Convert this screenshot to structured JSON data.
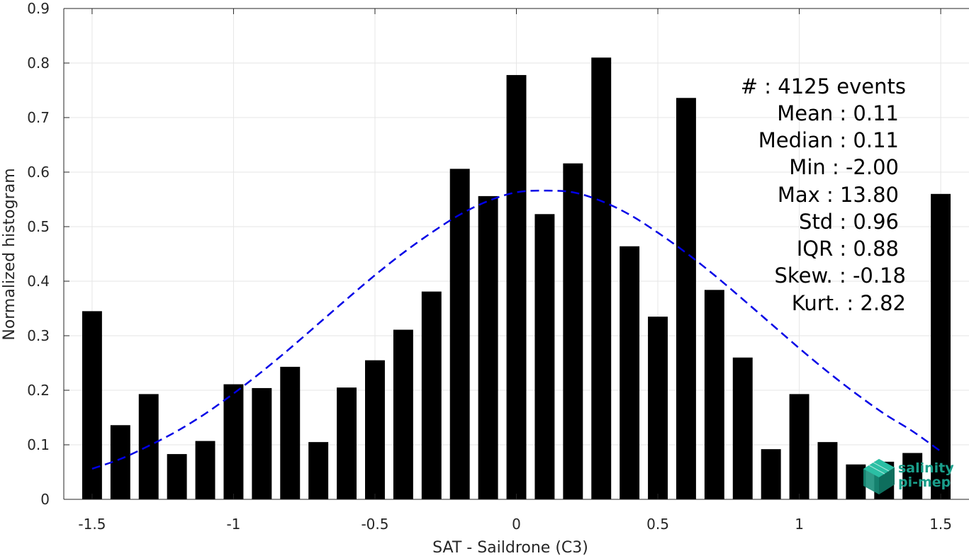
{
  "chart_data": {
    "type": "bar",
    "xlabel": "SAT - Saildrone (C3)",
    "ylabel": "Normalized histogram",
    "xlim": [
      -1.6,
      1.6
    ],
    "ylim": [
      0,
      0.9
    ],
    "grid": true,
    "x_ticks": [
      -1.5,
      -1,
      -0.5,
      0,
      0.5,
      1,
      1.5
    ],
    "x_tick_labels": [
      "-1.5",
      "-1",
      "-0.5",
      "0",
      "0.5",
      "1",
      "1.5"
    ],
    "y_ticks": [
      0,
      0.1,
      0.2,
      0.3,
      0.4,
      0.5,
      0.6,
      0.7,
      0.8,
      0.9
    ],
    "y_tick_labels": [
      "0",
      "0.1",
      "0.2",
      "0.3",
      "0.4",
      "0.5",
      "0.6",
      "0.7",
      "0.8",
      "0.9"
    ],
    "bar_width": 0.07,
    "bars": {
      "x": [
        -1.5,
        -1.4,
        -1.3,
        -1.2,
        -1.1,
        -1.0,
        -0.9,
        -0.8,
        -0.7,
        -0.6,
        -0.5,
        -0.4,
        -0.3,
        -0.2,
        -0.1,
        0.0,
        0.1,
        0.2,
        0.3,
        0.4,
        0.5,
        0.6,
        0.7,
        0.8,
        0.9,
        1.0,
        1.1,
        1.2,
        1.3,
        1.4,
        1.5
      ],
      "values": [
        0.345,
        0.136,
        0.193,
        0.083,
        0.107,
        0.211,
        0.204,
        0.243,
        0.105,
        0.205,
        0.255,
        0.311,
        0.381,
        0.606,
        0.556,
        0.778,
        0.523,
        0.616,
        0.81,
        0.464,
        0.335,
        0.736,
        0.384,
        0.26,
        0.092,
        0.193,
        0.105,
        0.064,
        0.069,
        0.085,
        0.56
      ],
      "color": "#000000"
    },
    "fit_curve": {
      "style": "dashed",
      "color": "#0000e6",
      "x": [
        -1.5,
        -1.4,
        -1.3,
        -1.2,
        -1.1,
        -1.0,
        -0.9,
        -0.8,
        -0.7,
        -0.6,
        -0.5,
        -0.4,
        -0.3,
        -0.2,
        -0.1,
        0.0,
        0.1,
        0.2,
        0.3,
        0.4,
        0.5,
        0.6,
        0.7,
        0.8,
        0.9,
        1.0,
        1.1,
        1.2,
        1.3,
        1.4,
        1.5
      ],
      "values": [
        0.056,
        0.074,
        0.098,
        0.125,
        0.157,
        0.194,
        0.234,
        0.277,
        0.322,
        0.367,
        0.411,
        0.452,
        0.489,
        0.522,
        0.547,
        0.563,
        0.566,
        0.563,
        0.547,
        0.522,
        0.489,
        0.452,
        0.411,
        0.367,
        0.322,
        0.277,
        0.234,
        0.194,
        0.157,
        0.125,
        0.088
      ]
    },
    "annotations": [
      "#  : 4125 events",
      "Mean : 0.11",
      "Median : 0.11",
      "Min : -2.00",
      "Max : 13.80",
      "Std : 0.96",
      "IQR : 0.88",
      "Skew. : -0.18",
      "Kurt. : 2.82"
    ]
  },
  "logo": {
    "line1": "salinity",
    "line2": "pi-mep",
    "color": "#1a9e8a"
  }
}
